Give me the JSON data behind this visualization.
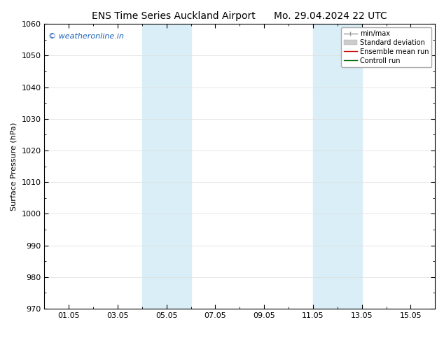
{
  "title1": "ENS Time Series Auckland Airport",
  "title2": "Mo. 29.04.2024 22 UTC",
  "ylabel": "Surface Pressure (hPa)",
  "ylim": [
    970,
    1060
  ],
  "yticks": [
    970,
    980,
    990,
    1000,
    1010,
    1020,
    1030,
    1040,
    1050,
    1060
  ],
  "xtick_labels": [
    "01.05",
    "03.05",
    "05.05",
    "07.05",
    "09.05",
    "11.05",
    "13.05",
    "15.05"
  ],
  "xtick_positions": [
    1,
    3,
    5,
    7,
    9,
    11,
    13,
    15
  ],
  "xlim": [
    0,
    16
  ],
  "shaded_bands": [
    {
      "x_start": 4.0,
      "x_end": 6.0
    },
    {
      "x_start": 11.0,
      "x_end": 13.0
    }
  ],
  "band_color": "#daeef7",
  "background_color": "#ffffff",
  "plot_bg_color": "#ffffff",
  "watermark": "© weatheronline.in",
  "watermark_color": "#1a5fbd",
  "legend_entries": [
    {
      "label": "min/max",
      "color": "#999999",
      "lw": 1.0
    },
    {
      "label": "Standard deviation",
      "color": "#cccccc",
      "lw": 6
    },
    {
      "label": "Ensemble mean run",
      "color": "#cc0000",
      "lw": 1.0
    },
    {
      "label": "Controll run",
      "color": "#006600",
      "lw": 1.0
    }
  ],
  "title_fontsize": 10,
  "axis_label_fontsize": 8,
  "tick_fontsize": 8,
  "legend_fontsize": 7,
  "watermark_fontsize": 8,
  "grid_color": "#dddddd",
  "spine_color": "#000000"
}
